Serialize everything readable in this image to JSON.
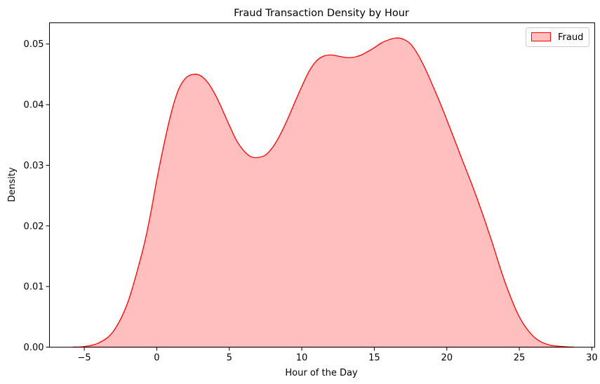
{
  "chart_data": {
    "type": "area",
    "title": "Fraud Transaction Density by Hour",
    "xlabel": "Hour of the Day",
    "ylabel": "Density",
    "xlim": [
      -7.4,
      30.2
    ],
    "ylim": [
      0,
      0.0535
    ],
    "x_ticks": [
      -5,
      0,
      5,
      10,
      15,
      20,
      25,
      30
    ],
    "y_ticks": [
      0.0,
      0.01,
      0.02,
      0.03,
      0.04,
      0.05
    ],
    "x_tick_labels": [
      "−5",
      "0",
      "5",
      "10",
      "15",
      "20",
      "25",
      "30"
    ],
    "y_tick_labels": [
      "0.00",
      "0.01",
      "0.02",
      "0.03",
      "0.04",
      "0.05"
    ],
    "grid": false,
    "legend": {
      "position": "top-right",
      "entries": [
        "Fraud"
      ]
    },
    "series": [
      {
        "name": "Fraud",
        "line_color": "#ff0000",
        "fill_color": "#ffbfbf",
        "x": [
          -5.8,
          -5,
          -4,
          -3,
          -2,
          -1,
          -0.5,
          0,
          0.5,
          1,
          1.5,
          2,
          2.5,
          3,
          3.5,
          4,
          4.5,
          5,
          5.5,
          6,
          6.5,
          7,
          7.5,
          8,
          8.5,
          9,
          9.5,
          10,
          10.5,
          11,
          11.5,
          12,
          12.5,
          13,
          13.5,
          14,
          14.5,
          15,
          15.5,
          16,
          16.5,
          17,
          17.5,
          18,
          18.5,
          19,
          19.5,
          20,
          21,
          22,
          23,
          24,
          25,
          26,
          27,
          28,
          28.8
        ],
        "y": [
          0.0,
          0.0001,
          0.0007,
          0.0026,
          0.0074,
          0.0157,
          0.0211,
          0.0276,
          0.0335,
          0.0387,
          0.0425,
          0.0444,
          0.045,
          0.0448,
          0.0437,
          0.0418,
          0.0393,
          0.0366,
          0.0341,
          0.0324,
          0.0314,
          0.0313,
          0.0317,
          0.033,
          0.035,
          0.0375,
          0.0403,
          0.043,
          0.0455,
          0.0472,
          0.048,
          0.0482,
          0.048,
          0.0478,
          0.0478,
          0.0481,
          0.0487,
          0.0494,
          0.0502,
          0.0507,
          0.051,
          0.0508,
          0.05,
          0.0483,
          0.046,
          0.0433,
          0.0405,
          0.0375,
          0.0313,
          0.0251,
          0.0182,
          0.0108,
          0.005,
          0.0017,
          0.0004,
          0.0001,
          0.0
        ]
      }
    ]
  }
}
